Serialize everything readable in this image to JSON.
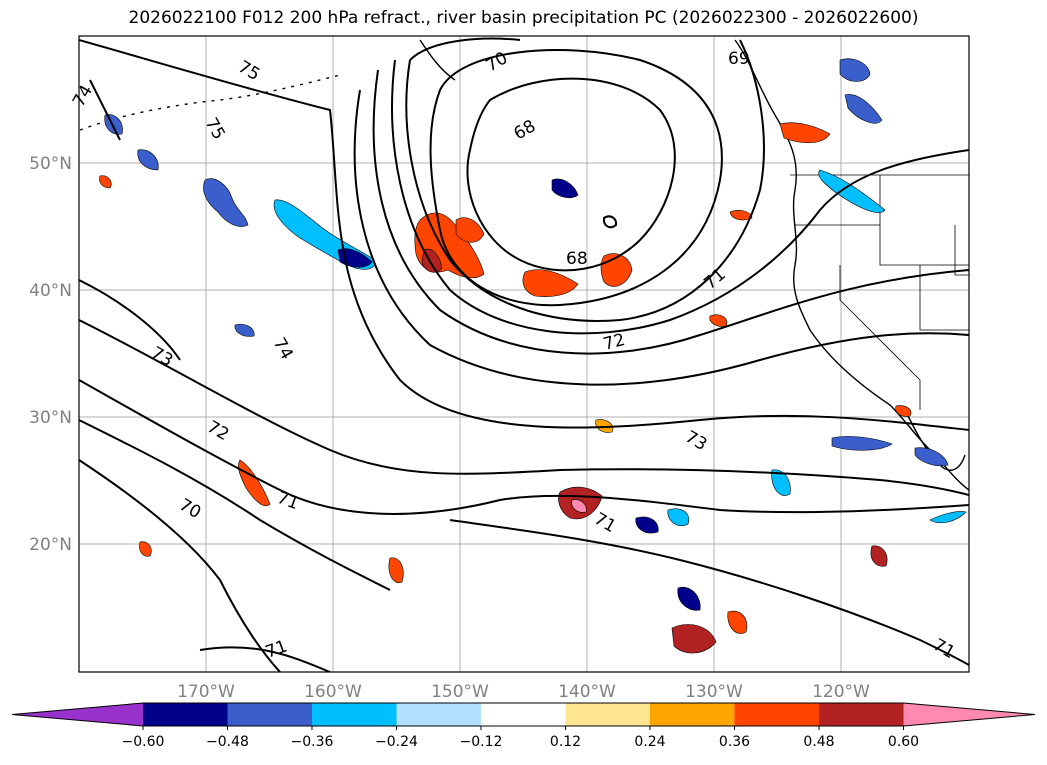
{
  "title": "2026022100 F012 200 hPa refract., river basin precipitation PC (2026022300 - 2026022600)",
  "map": {
    "lat_labels": [
      "50°N",
      "40°N",
      "30°N",
      "20°N"
    ],
    "lon_labels": [
      "170°W",
      "160°W",
      "150°W",
      "140°W",
      "130°W",
      "120°W"
    ],
    "contour_labels": [
      "75",
      "74",
      "75",
      "70",
      "69",
      "68",
      "68",
      "71",
      "72",
      "73",
      "74",
      "73",
      "72",
      "70",
      "71",
      "71",
      "71",
      "71"
    ]
  },
  "colorbar": {
    "ticks": [
      "−0.60",
      "−0.48",
      "−0.36",
      "−0.24",
      "−0.12",
      "0.12",
      "0.24",
      "0.36",
      "0.48",
      "0.60"
    ],
    "colors": [
      "#9932CC",
      "#00008B",
      "#3A5FCD",
      "#00BFFF",
      "#B0E2FF",
      "#FFFFFF",
      "#FFE58F",
      "#FFA500",
      "#FF4500",
      "#B22222",
      "#FF89B0"
    ]
  }
}
